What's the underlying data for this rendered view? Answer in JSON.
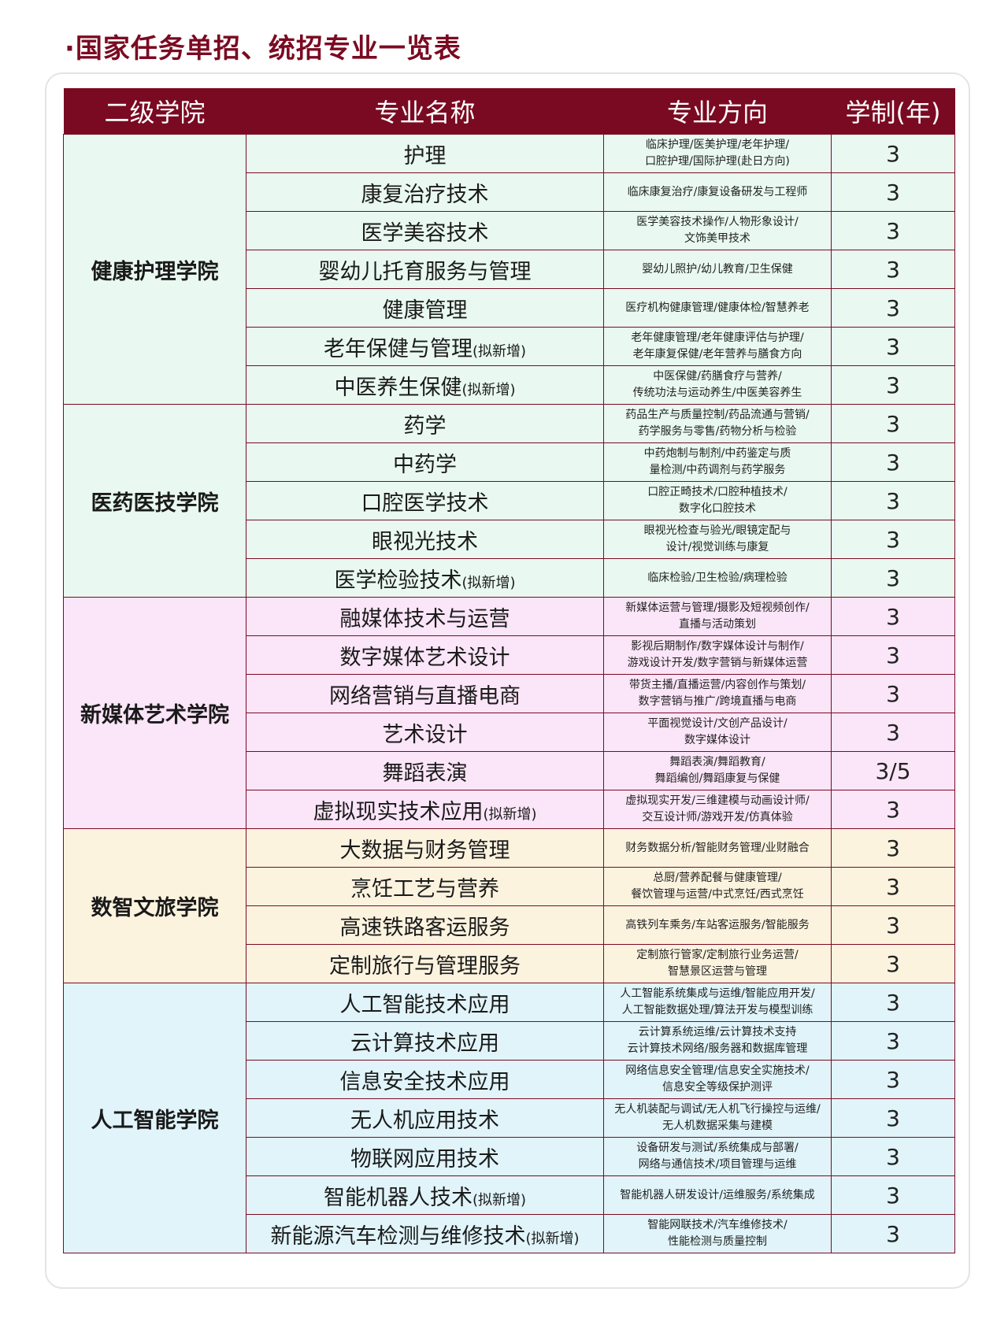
{
  "title": "·国家任务单招、统招专业一览表",
  "headers": [
    "二级学院",
    "专业名称",
    "专业方向",
    "学制(年)"
  ],
  "new_tag": "(拟新增)",
  "groups": [
    {
      "college": "健康护理学院",
      "bg": "#e9f9f1",
      "rows": [
        {
          "major": "护理",
          "new": false,
          "direction": [
            "临床护理/医美护理/老年护理/",
            "口腔护理/国际护理(赴日方向)"
          ],
          "years": "3"
        },
        {
          "major": "康复治疗技术",
          "new": false,
          "direction": [
            "临床康复治疗/康复设备研发与工程师"
          ],
          "years": "3"
        },
        {
          "major": "医学美容技术",
          "new": false,
          "direction": [
            "医学美容技术操作/人物形象设计/",
            "文饰美甲技术"
          ],
          "years": "3"
        },
        {
          "major": "婴幼儿托育服务与管理",
          "new": false,
          "direction": [
            "婴幼儿照护/幼儿教育/卫生保健"
          ],
          "years": "3"
        },
        {
          "major": "健康管理",
          "new": false,
          "direction": [
            "医疗机构健康管理/健康体检/智慧养老"
          ],
          "years": "3"
        },
        {
          "major": "老年保健与管理",
          "new": true,
          "direction": [
            "老年健康管理/老年健康评估与护理/",
            "老年康复保健/老年营养与膳食方向"
          ],
          "years": "3"
        },
        {
          "major": "中医养生保健",
          "new": true,
          "direction": [
            "中医保健/药膳食疗与营养/",
            "传统功法与运动养生/中医美容养生"
          ],
          "years": "3"
        }
      ]
    },
    {
      "college": "医药医技学院",
      "bg": "#e9f9f1",
      "rows": [
        {
          "major": "药学",
          "new": false,
          "direction": [
            "药品生产与质量控制/药品流通与营销/",
            "药学服务与零售/药物分析与检验"
          ],
          "years": "3"
        },
        {
          "major": "中药学",
          "new": false,
          "direction": [
            "中药炮制与制剂/中药鉴定与质",
            "量检测/中药调剂与药学服务"
          ],
          "years": "3"
        },
        {
          "major": "口腔医学技术",
          "new": false,
          "direction": [
            "口腔正畸技术/口腔种植技术/",
            "数字化口腔技术"
          ],
          "years": "3"
        },
        {
          "major": "眼视光技术",
          "new": false,
          "direction": [
            "眼视光检查与验光/眼镜定配与",
            "设计/视觉训练与康复"
          ],
          "years": "3"
        },
        {
          "major": "医学检验技术",
          "new": true,
          "direction": [
            "临床检验/卫生检验/病理检验"
          ],
          "years": "3"
        }
      ]
    },
    {
      "college": "新媒体艺术学院",
      "bg": "#fbe5f8",
      "rows": [
        {
          "major": "融媒体技术与运营",
          "new": false,
          "direction": [
            "新媒体运营与管理/摄影及短视频创作/",
            "直播与活动策划"
          ],
          "years": "3"
        },
        {
          "major": "数字媒体艺术设计",
          "new": false,
          "direction": [
            "影视后期制作/数字媒体设计与制作/",
            "游戏设计开发/数字营销与新媒体运营"
          ],
          "years": "3"
        },
        {
          "major": "网络营销与直播电商",
          "new": false,
          "direction": [
            "带货主播/直播运营/内容创作与策划/",
            "数字营销与推广/跨境直播与电商"
          ],
          "years": "3"
        },
        {
          "major": "艺术设计",
          "new": false,
          "direction": [
            "平面视觉设计/文创产品设计/",
            "数字媒体设计"
          ],
          "years": "3"
        },
        {
          "major": "舞蹈表演",
          "new": false,
          "direction": [
            "舞蹈表演/舞蹈教育/",
            "舞蹈编创/舞蹈康复与保健"
          ],
          "years": "3/5"
        },
        {
          "major": "虚拟现实技术应用",
          "new": true,
          "direction": [
            "虚拟现实开发/三维建模与动画设计师/",
            "交互设计师/游戏开发/仿真体验"
          ],
          "years": "3"
        }
      ]
    },
    {
      "college": "数智文旅学院",
      "bg": "#fcf3df",
      "rows": [
        {
          "major": "大数据与财务管理",
          "new": false,
          "direction": [
            "财务数据分析/智能财务管理/业财融合"
          ],
          "years": "3"
        },
        {
          "major": "烹饪工艺与营养",
          "new": false,
          "direction": [
            "总厨/营养配餐与健康管理/",
            "餐饮管理与运营/中式烹饪/西式烹饪"
          ],
          "years": "3"
        },
        {
          "major": "高速铁路客运服务",
          "new": false,
          "direction": [
            "高铁列车乘务/车站客运服务/智能服务"
          ],
          "years": "3"
        },
        {
          "major": "定制旅行与管理服务",
          "new": false,
          "direction": [
            "定制旅行管家/定制旅行业务运营/",
            "智慧景区运营与管理"
          ],
          "years": "3"
        }
      ]
    },
    {
      "college": "人工智能学院",
      "bg": "#e0f4fa",
      "rows": [
        {
          "major": "人工智能技术应用",
          "new": false,
          "direction": [
            "人工智能系统集成与运维/智能应用开发/",
            "人工智能数据处理/算法开发与模型训练"
          ],
          "years": "3"
        },
        {
          "major": "云计算技术应用",
          "new": false,
          "direction": [
            "云计算系统运维/云计算技术支持",
            "云计算技术网络/服务器和数据库管理"
          ],
          "years": "3"
        },
        {
          "major": "信息安全技术应用",
          "new": false,
          "direction": [
            "网络信息安全管理/信息安全实施技术/",
            "信息安全等级保护测评"
          ],
          "years": "3"
        },
        {
          "major": "无人机应用技术",
          "new": false,
          "direction": [
            "无人机装配与调试/无人机飞行操控与运维/",
            "无人机数据采集与建模"
          ],
          "years": "3"
        },
        {
          "major": "物联网应用技术",
          "new": false,
          "direction": [
            "设备研发与测试/系统集成与部署/",
            "网络与通信技术/项目管理与运维"
          ],
          "years": "3"
        },
        {
          "major": "智能机器人技术",
          "new": true,
          "direction": [
            "智能机器人研发设计/运维服务/系统集成"
          ],
          "years": "3"
        },
        {
          "major": "新能源汽车检测与维修技术",
          "new": true,
          "direction": [
            "智能网联技术/汽车维修技术/",
            "性能检测与质量控制"
          ],
          "years": "3"
        }
      ]
    }
  ]
}
